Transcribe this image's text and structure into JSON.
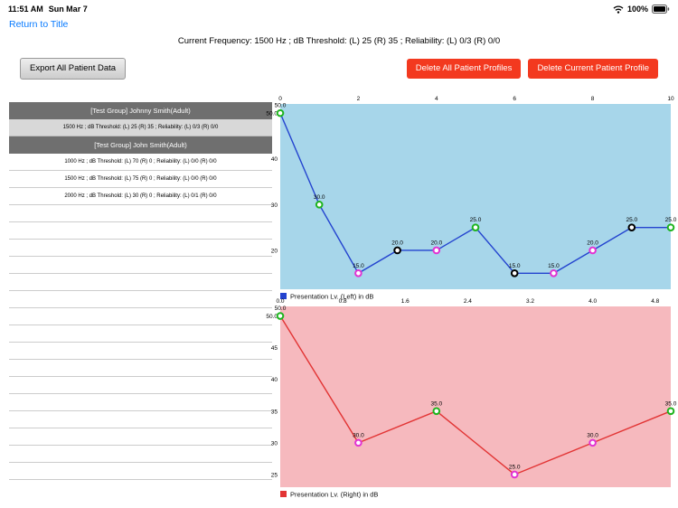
{
  "status_bar": {
    "time": "11:51 AM",
    "date": "Sun Mar 7",
    "battery_percent": "100%"
  },
  "header": {
    "return_link": "Return to Title",
    "status_line": "Current Frequency: 1500 Hz ; dB Threshold: (L) 25 (R) 35 ; Reliability: (L) 0/3 (R) 0/0"
  },
  "toolbar": {
    "export_label": "Export All Patient Data",
    "delete_all_label": "Delete All Patient Profiles",
    "delete_current_label": "Delete Current Patient Profile"
  },
  "patient_list": {
    "rows": [
      {
        "type": "group",
        "label": "[Test Group] Johnny Smith(Adult)"
      },
      {
        "type": "selected",
        "label": "1500 Hz ; dB Threshold: (L) 25 (R) 35 ; Reliability: (L) 0/3 (R) 0/0"
      },
      {
        "type": "group",
        "label": "[Test Group] John Smith(Adult)"
      },
      {
        "type": "item",
        "label": "1000 Hz ; dB Threshold: (L) 70 (R) 0 ; Reliability: (L) 0/0 (R) 0/0"
      },
      {
        "type": "item",
        "label": "1500 Hz ; dB Threshold: (L) 75 (R) 0 ; Reliability: (L) 0/0 (R) 0/0"
      },
      {
        "type": "item",
        "label": "2000 Hz ; dB Threshold: (L) 30 (R) 0 ; Reliability: (L) 0/1 (R) 0/0"
      }
    ],
    "empty_row_count": 16
  },
  "colors": {
    "link_blue": "#077aff",
    "delete_red": "#f3391f",
    "group_header_gray": "#6f6f6f",
    "selected_row_gray": "#d8d8d8",
    "left_chart_bg": "#a7d6ea",
    "right_chart_bg": "#f6b9be",
    "left_line_blue": "#2343cf",
    "right_line_red": "#e23434",
    "marker_green": "#1eb41e",
    "marker_magenta": "#e233d3",
    "marker_black": "#000000"
  },
  "chart_data": [
    {
      "type": "line",
      "id": "left-ear",
      "legend": "Presentation Lv. (Left) in dB",
      "line_color": "#2343cf",
      "bg_color": "#a7d6ea",
      "x_min": 0,
      "x_max": 10,
      "x_tick_labels": [
        "0",
        "2",
        "4",
        "6",
        "8",
        "10"
      ],
      "y_min": 11.5,
      "y_max": 52,
      "y_ticks": [
        {
          "v": 50,
          "label": "50.0"
        },
        {
          "v": 40,
          "label": "40"
        },
        {
          "v": 30,
          "label": "30"
        },
        {
          "v": 20,
          "label": "20"
        }
      ],
      "points": [
        {
          "x": 0,
          "v": 50,
          "label": "50.0",
          "ring": "#1eb41e"
        },
        {
          "x": 1,
          "v": 30,
          "label": "30.0",
          "ring": "#1eb41e"
        },
        {
          "x": 2,
          "v": 15,
          "label": "15.0",
          "ring": "#e233d3"
        },
        {
          "x": 3,
          "v": 20,
          "label": "20.0",
          "ring": "#000000"
        },
        {
          "x": 4,
          "v": 20,
          "label": "20.0",
          "ring": "#e233d3"
        },
        {
          "x": 5,
          "v": 25,
          "label": "25.0",
          "ring": "#1eb41e"
        },
        {
          "x": 6,
          "v": 15,
          "label": "15.0",
          "ring": "#000000"
        },
        {
          "x": 7,
          "v": 15,
          "label": "15.0",
          "ring": "#e233d3"
        },
        {
          "x": 8,
          "v": 20,
          "label": "20.0",
          "ring": "#e233d3"
        },
        {
          "x": 9,
          "v": 25,
          "label": "25.0",
          "ring": "#000000"
        },
        {
          "x": 10,
          "v": 25,
          "label": "25.0",
          "ring": "#1eb41e"
        }
      ]
    },
    {
      "type": "line",
      "id": "right-ear",
      "legend": "Presentation Lv. (Right) in dB",
      "line_color": "#e23434",
      "bg_color": "#f6b9be",
      "x_min": 0,
      "x_max": 5,
      "x_tick_labels": [
        "0.0",
        "0.8",
        "1.6",
        "2.4",
        "3.2",
        "4.0",
        "4.8"
      ],
      "y_min": 23,
      "y_max": 51.5,
      "y_ticks": [
        {
          "v": 50,
          "label": "50.0"
        },
        {
          "v": 45,
          "label": "45"
        },
        {
          "v": 40,
          "label": "40"
        },
        {
          "v": 35,
          "label": "35"
        },
        {
          "v": 30,
          "label": "30"
        },
        {
          "v": 25,
          "label": "25"
        }
      ],
      "points": [
        {
          "x": 0,
          "v": 50,
          "label": "50.0",
          "ring": "#1eb41e"
        },
        {
          "x": 1,
          "v": 30,
          "label": "30.0",
          "ring": "#e233d3"
        },
        {
          "x": 2,
          "v": 35,
          "label": "35.0",
          "ring": "#1eb41e"
        },
        {
          "x": 3,
          "v": 25,
          "label": "25.0",
          "ring": "#e233d3"
        },
        {
          "x": 4,
          "v": 30,
          "label": "30.0",
          "ring": "#e233d3"
        },
        {
          "x": 5,
          "v": 35,
          "label": "35.0",
          "ring": "#1eb41e"
        }
      ]
    }
  ]
}
